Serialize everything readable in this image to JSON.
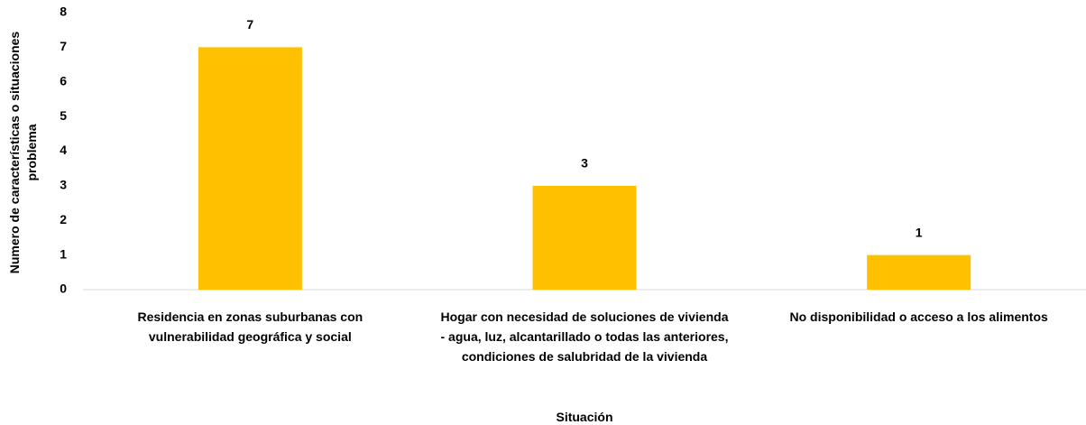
{
  "chart_data": {
    "type": "bar",
    "categories": [
      "Residencia en zonas suburbanas con vulnerabilidad geográfica y social",
      "Hogar con necesidad de soluciones de vivienda - agua, luz, alcantarillado o todas las anteriores, condiciones de salubridad de la vivienda",
      "No disponibilidad o acceso a los alimentos"
    ],
    "values": [
      7,
      3,
      1
    ],
    "color": "#ffc000",
    "ylim": [
      0,
      8
    ],
    "yticks": [
      0,
      1,
      2,
      3,
      4,
      5,
      6,
      7,
      8
    ],
    "grid": false,
    "y_label": "Numero de características o situaciones problema",
    "x_label": "Situación"
  }
}
